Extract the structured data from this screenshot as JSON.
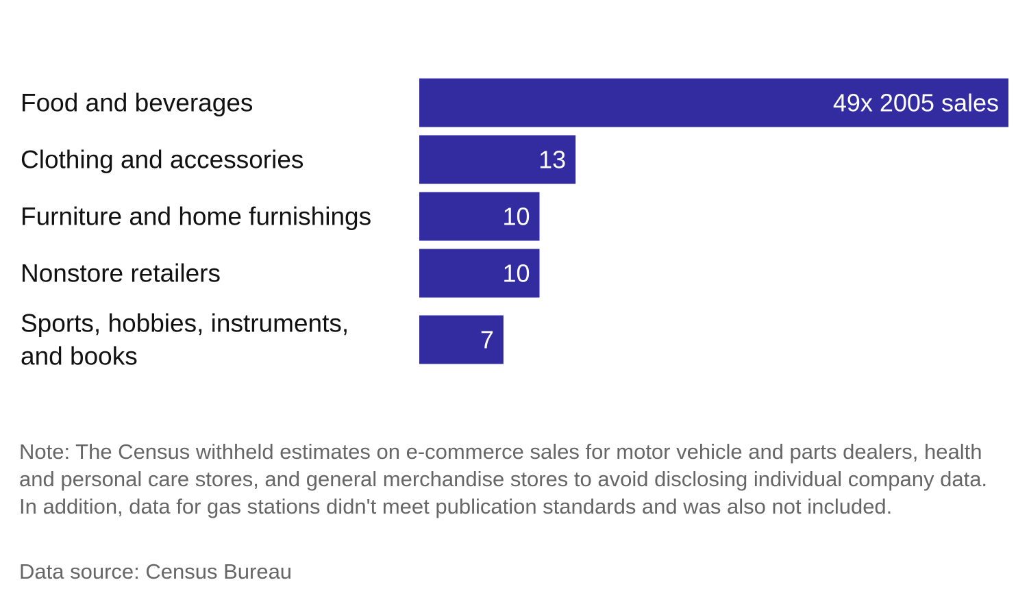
{
  "chart_data": {
    "type": "bar",
    "orientation": "horizontal",
    "categories": [
      [
        "Food and beverages"
      ],
      [
        "Clothing and accessories"
      ],
      [
        "Furniture and home furnishings"
      ],
      [
        "Nonstore retailers"
      ],
      [
        "Sports, hobbies, instruments,",
        "and books"
      ]
    ],
    "values": [
      49,
      13,
      10,
      10,
      7
    ],
    "data_labels": [
      "49x 2005 sales",
      "13",
      "10",
      "10",
      "7"
    ],
    "bar_color": "#322ca0",
    "xlim": [
      0,
      49
    ],
    "grid": false,
    "legend": "none"
  },
  "footer": {
    "note": "Note: The Census withheld estimates on e-commerce sales for motor vehicle and parts dealers, health and personal care stores, and general merchandise stores to avoid disclosing individual company data. In addition, data for gas stations didn't meet publication standards and was also not included.",
    "source": "Data source: Census Bureau"
  }
}
